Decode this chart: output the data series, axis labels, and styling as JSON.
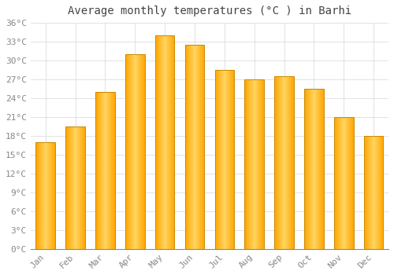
{
  "title": "Average monthly temperatures (°C ) in Barhi",
  "months": [
    "Jan",
    "Feb",
    "Mar",
    "Apr",
    "May",
    "Jun",
    "Jul",
    "Aug",
    "Sep",
    "Oct",
    "Nov",
    "Dec"
  ],
  "values": [
    17.0,
    19.5,
    25.0,
    31.0,
    34.0,
    32.5,
    28.5,
    27.0,
    27.5,
    25.5,
    21.0,
    18.0
  ],
  "bar_color_left": "#FFA500",
  "bar_color_center": "#FFD060",
  "bar_color_right": "#FFA500",
  "bar_edge_color": "#CC8800",
  "background_color": "#FFFFFF",
  "grid_color": "#DDDDDD",
  "ylim": [
    0,
    36
  ],
  "ytick_step": 3,
  "title_fontsize": 10,
  "tick_fontsize": 8,
  "tick_color": "#888888",
  "title_color": "#444444",
  "bar_width": 0.65
}
